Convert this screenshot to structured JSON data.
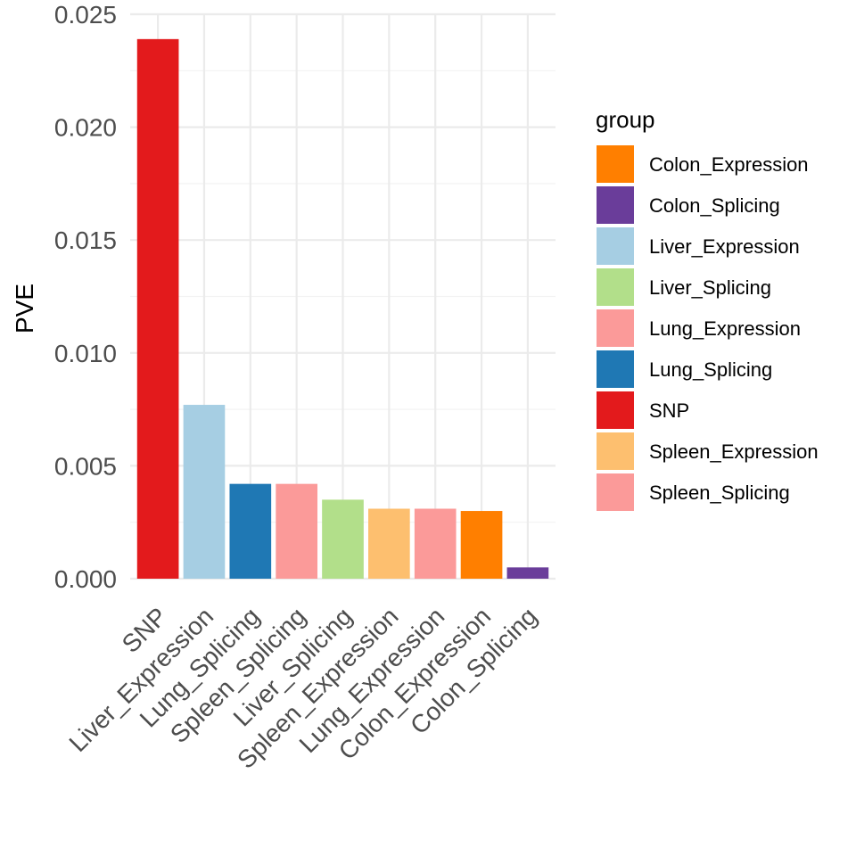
{
  "chart_data": {
    "type": "bar",
    "title": "",
    "xlabel": "",
    "ylabel": "PVE",
    "ylim": [
      0,
      0.025
    ],
    "yticks": [
      "0.000",
      "0.005",
      "0.010",
      "0.015",
      "0.020",
      "0.025"
    ],
    "grid": true,
    "legend_position": "right",
    "legend_title": "group",
    "categories": [
      "SNP",
      "Liver_Expression",
      "Lung_Splicing",
      "Spleen_Splicing",
      "Liver_Splicing",
      "Spleen_Expression",
      "Lung_Expression",
      "Colon_Expression",
      "Colon_Splicing"
    ],
    "values": [
      0.0239,
      0.0077,
      0.0042,
      0.0042,
      0.0035,
      0.0031,
      0.0031,
      0.003,
      0.0005
    ],
    "bar_colors": [
      "#E31A1C",
      "#A6CEE3",
      "#1F78B4",
      "#FB9A99",
      "#B2DF8A",
      "#FDBF6F",
      "#FB9A99",
      "#FF7F00",
      "#6A3D9A"
    ],
    "legend": [
      {
        "label": "Colon_Expression",
        "color": "#FF7F00"
      },
      {
        "label": "Colon_Splicing",
        "color": "#6A3D9A"
      },
      {
        "label": "Liver_Expression",
        "color": "#A6CEE3"
      },
      {
        "label": "Liver_Splicing",
        "color": "#B2DF8A"
      },
      {
        "label": "Lung_Expression",
        "color": "#FB9A99"
      },
      {
        "label": "Lung_Splicing",
        "color": "#1F78B4"
      },
      {
        "label": "SNP",
        "color": "#E31A1C"
      },
      {
        "label": "Spleen_Expression",
        "color": "#FDBF6F"
      },
      {
        "label": "Spleen_Splicing",
        "color": "#FB9A99"
      }
    ]
  }
}
